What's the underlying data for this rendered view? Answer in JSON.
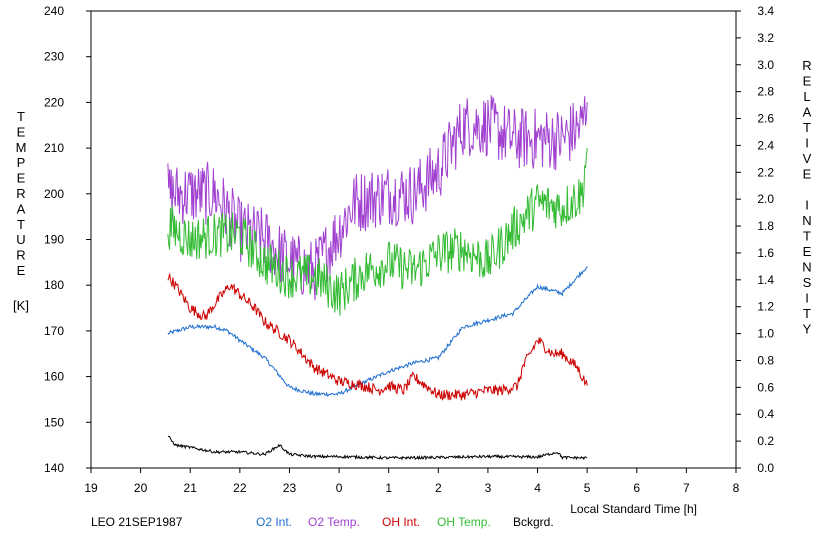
{
  "chart_data": {
    "type": "line",
    "title": "",
    "xlabel": "Local Standard Time [h]",
    "ylabel_left_chars": [
      "T",
      "E",
      "M",
      "P",
      "E",
      "R",
      "A",
      "T",
      "U",
      "R",
      "E"
    ],
    "ylabel_left_unit": "[K]",
    "ylabel_right_chars": [
      "R",
      "E",
      "L",
      "A",
      "T",
      "I",
      "V",
      "E",
      "",
      "I",
      "N",
      "T",
      "E",
      "N",
      "S",
      "I",
      "T",
      "Y"
    ],
    "xlim": [
      19,
      32
    ],
    "ylim_left": [
      140,
      240
    ],
    "ylim_right": [
      0,
      3.4
    ],
    "x_ticks": [
      19,
      20,
      21,
      22,
      23,
      24,
      25,
      26,
      27,
      28,
      29,
      30,
      31,
      32
    ],
    "x_tick_labels": [
      "19",
      "20",
      "21",
      "22",
      "23",
      "0",
      "1",
      "2",
      "3",
      "4",
      "5",
      "6",
      "7",
      "8"
    ],
    "y_left_ticks": [
      140,
      150,
      160,
      170,
      180,
      190,
      200,
      210,
      220,
      230,
      240
    ],
    "y_right_ticks": [
      0,
      0.2,
      0.4,
      0.6,
      0.8,
      1.0,
      1.2,
      1.4,
      1.6,
      1.8,
      2.0,
      2.2,
      2.4,
      2.6,
      2.8,
      3.0,
      3.2,
      3.4
    ],
    "y_right_tick_labels": [
      "0.0",
      "0.2",
      "0.4",
      "0.6",
      "0.8",
      "1.0",
      "1.2",
      "1.4",
      "1.6",
      "1.8",
      "2.0",
      "2.2",
      "2.4",
      "2.6",
      "2.8",
      "3.0",
      "3.2",
      "3.4"
    ],
    "grid": false,
    "x_unit": "hours (wraps past midnight)",
    "series": [
      {
        "name": "O2 Int.",
        "color": "#1f6fd0",
        "axis": "right",
        "noise": 0.015,
        "x": [
          20.55,
          21.0,
          21.5,
          21.75,
          22.0,
          22.5,
          23.0,
          23.5,
          24.0,
          24.4,
          25.0,
          25.5,
          26.0,
          26.5,
          27.0,
          27.5,
          28.0,
          28.5,
          29.0
        ],
        "y": [
          1.0,
          1.05,
          1.05,
          1.02,
          0.95,
          0.82,
          0.6,
          0.55,
          0.55,
          0.62,
          0.72,
          0.78,
          0.82,
          1.05,
          1.1,
          1.15,
          1.35,
          1.3,
          1.5
        ]
      },
      {
        "name": "O2 Temp.",
        "color": "#a040d0",
        "axis": "left",
        "noise": 7,
        "x": [
          20.55,
          21.0,
          21.5,
          22.0,
          22.5,
          23.0,
          23.5,
          24.0,
          24.3,
          25.0,
          25.5,
          26.0,
          26.5,
          27.0,
          27.5,
          28.0,
          28.5,
          28.9,
          29.0
        ],
        "y": [
          200,
          200,
          200,
          192,
          190,
          185,
          183,
          192,
          198,
          200,
          200,
          205,
          215,
          215,
          212,
          212,
          212,
          215,
          220
        ]
      },
      {
        "name": "OH Int.",
        "color": "#cc0000",
        "axis": "left",
        "noise": 1.2,
        "x": [
          20.55,
          20.7,
          21.0,
          21.3,
          21.5,
          21.8,
          22.0,
          22.3,
          22.5,
          23.0,
          23.5,
          24.0,
          24.5,
          24.8,
          25.0,
          25.3,
          25.5,
          26.0,
          26.5,
          27.0,
          27.3,
          27.6,
          27.7,
          28.0,
          28.3,
          28.5,
          28.8,
          29.0
        ],
        "y": [
          182,
          180,
          175,
          173,
          176,
          180,
          178,
          175,
          172,
          168,
          162,
          159,
          158,
          157,
          158,
          157,
          160,
          156,
          156,
          157,
          157,
          158,
          162,
          168,
          165,
          165,
          162,
          158
        ]
      },
      {
        "name": "OH Temp.",
        "color": "#33bb33",
        "axis": "left",
        "noise": 5,
        "x": [
          20.55,
          21.0,
          21.5,
          22.0,
          22.5,
          23.0,
          23.5,
          24.0,
          24.5,
          25.0,
          25.5,
          26.0,
          26.5,
          27.0,
          27.5,
          28.0,
          28.5,
          28.9,
          29.0
        ],
        "y": [
          193,
          190,
          191,
          191,
          185,
          182,
          182,
          178,
          183,
          185,
          183,
          187,
          188,
          185,
          192,
          198,
          197,
          200,
          210
        ]
      },
      {
        "name": "Bckgrd.",
        "color": "#000000",
        "axis": "left",
        "noise": 0.3,
        "x": [
          20.55,
          20.7,
          21.0,
          21.5,
          22.0,
          22.5,
          22.8,
          23.0,
          23.5,
          24.0,
          25.0,
          26.0,
          27.0,
          28.0,
          28.4,
          28.5,
          29.0
        ],
        "y": [
          147,
          145,
          144.5,
          143.5,
          143.5,
          143,
          145,
          143,
          142.5,
          142.5,
          142.2,
          142.3,
          142.5,
          142.4,
          143.5,
          142.3,
          142.2
        ]
      }
    ]
  },
  "footer": {
    "dataset_label": "LEO 21SEP1987"
  }
}
